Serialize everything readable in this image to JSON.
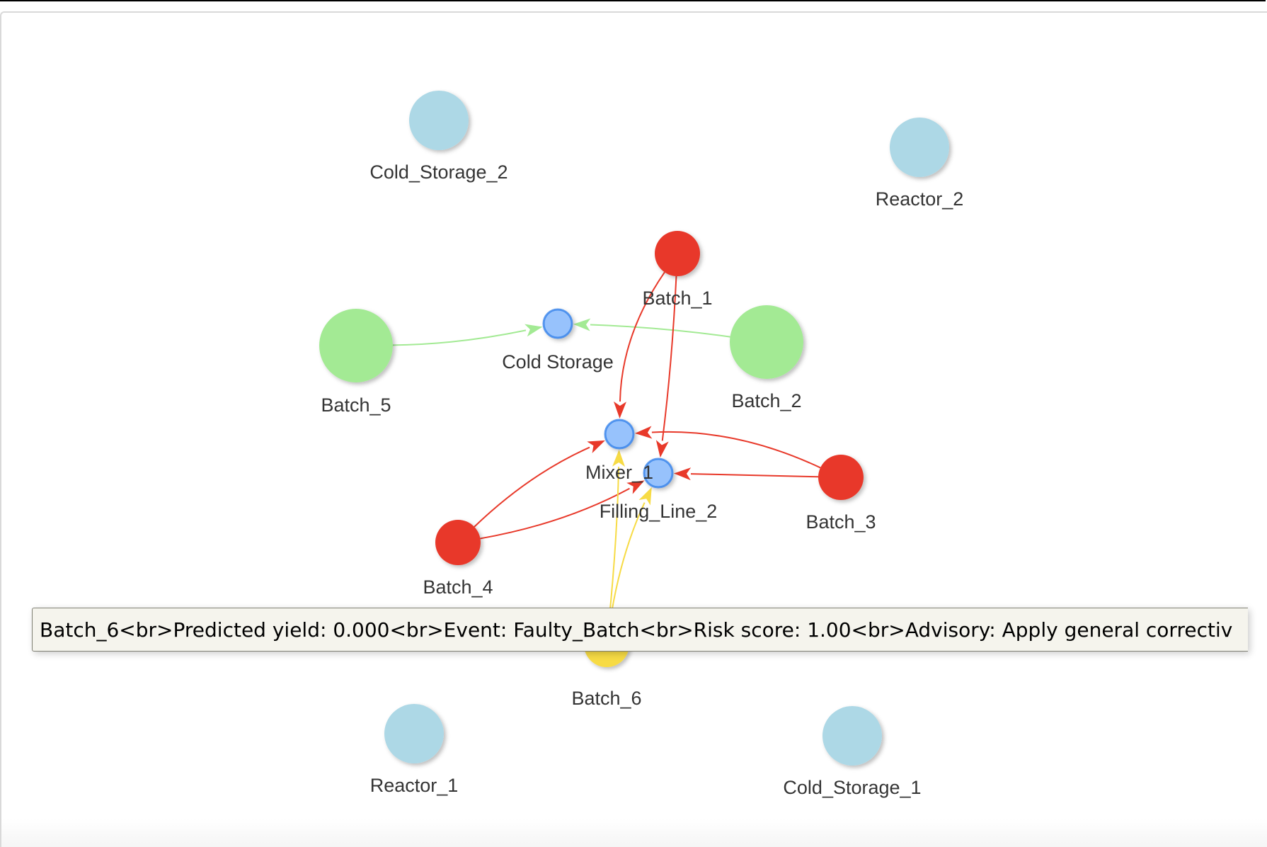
{
  "graph": {
    "nodes": [
      {
        "id": "Cold_Storage_2",
        "label": "Cold_Storage_2",
        "kind": "equipment",
        "color": "#add8e6"
      },
      {
        "id": "Reactor_2",
        "label": "Reactor_2",
        "kind": "equipment",
        "color": "#add8e6"
      },
      {
        "id": "Batch_1",
        "label": "Batch_1",
        "kind": "batch",
        "color": "#e8392a"
      },
      {
        "id": "Cold_Storage",
        "label": "Cold Storage",
        "kind": "station",
        "color": "#97c2fc"
      },
      {
        "id": "Batch_5",
        "label": "Batch_5",
        "kind": "batch",
        "color": "#a3ea94"
      },
      {
        "id": "Batch_2",
        "label": "Batch_2",
        "kind": "batch",
        "color": "#a3ea94"
      },
      {
        "id": "Mixer_1",
        "label": "Mixer_1",
        "kind": "station",
        "color": "#97c2fc"
      },
      {
        "id": "Filling_Line_2",
        "label": "Filling_Line_2",
        "kind": "station",
        "color": "#97c2fc"
      },
      {
        "id": "Batch_3",
        "label": "Batch_3",
        "kind": "batch",
        "color": "#e8392a"
      },
      {
        "id": "Batch_4",
        "label": "Batch_4",
        "kind": "batch",
        "color": "#e8392a"
      },
      {
        "id": "Batch_6",
        "label": "Batch_6",
        "kind": "batch",
        "color": "#f7db45"
      },
      {
        "id": "Reactor_1",
        "label": "Reactor_1",
        "kind": "equipment",
        "color": "#add8e6"
      },
      {
        "id": "Cold_Storage_1",
        "label": "Cold_Storage_1",
        "kind": "equipment",
        "color": "#add8e6"
      }
    ],
    "edges": [
      {
        "from": "Batch_5",
        "to": "Cold_Storage",
        "color": "#a3ea94"
      },
      {
        "from": "Batch_2",
        "to": "Cold_Storage",
        "color": "#a3ea94"
      },
      {
        "from": "Batch_1",
        "to": "Mixer_1",
        "color": "#e8392a"
      },
      {
        "from": "Batch_1",
        "to": "Filling_Line_2",
        "color": "#e8392a"
      },
      {
        "from": "Batch_3",
        "to": "Mixer_1",
        "color": "#e8392a"
      },
      {
        "from": "Batch_3",
        "to": "Filling_Line_2",
        "color": "#e8392a"
      },
      {
        "from": "Batch_4",
        "to": "Mixer_1",
        "color": "#e8392a"
      },
      {
        "from": "Batch_4",
        "to": "Filling_Line_2",
        "color": "#e8392a"
      },
      {
        "from": "Batch_6",
        "to": "Mixer_1",
        "color": "#f7db45"
      },
      {
        "from": "Batch_6",
        "to": "Filling_Line_2",
        "color": "#f7db45"
      }
    ]
  },
  "tooltip": {
    "node": "Batch_6",
    "text": "Batch_6<br>Predicted yield: 0.000<br>Event: Faulty_Batch<br>Risk score: 1.00<br>Advisory: Apply general correctiv"
  }
}
